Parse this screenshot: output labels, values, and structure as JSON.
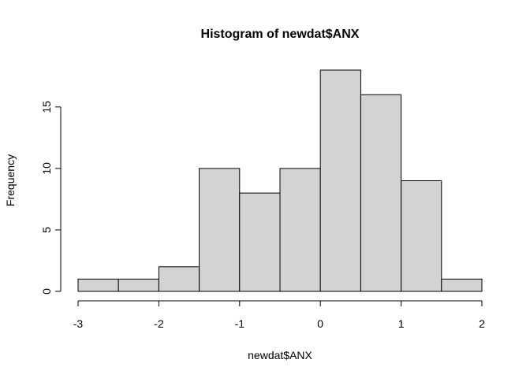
{
  "chart_data": {
    "type": "bar",
    "title": "Histogram of newdat$ANX",
    "xlabel": "newdat$ANX",
    "ylabel": "Frequency",
    "bin_edges": [
      -3,
      -2.5,
      -2,
      -1.5,
      -1,
      -0.5,
      0,
      0.5,
      1,
      1.5,
      2
    ],
    "values": [
      1,
      1,
      2,
      10,
      8,
      10,
      18,
      16,
      9,
      1
    ],
    "xlim": [
      -3,
      2
    ],
    "ylim": [
      0,
      18
    ],
    "xticks": [
      -3,
      -2,
      -1,
      0,
      1,
      2
    ],
    "xtick_labels": [
      "-3",
      "-2",
      "-1",
      "0",
      "1",
      "2"
    ],
    "yticks": [
      0,
      5,
      10,
      15
    ],
    "ytick_labels": [
      "0",
      "5",
      "10",
      "15"
    ],
    "grid": false,
    "colors": {
      "bar_fill": "#d3d3d3",
      "bar_stroke": "#000000"
    }
  }
}
